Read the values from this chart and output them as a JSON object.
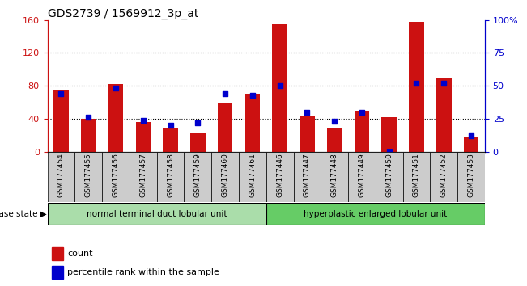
{
  "title": "GDS2739 / 1569912_3p_at",
  "samples": [
    "GSM177454",
    "GSM177455",
    "GSM177456",
    "GSM177457",
    "GSM177458",
    "GSM177459",
    "GSM177460",
    "GSM177461",
    "GSM177446",
    "GSM177447",
    "GSM177448",
    "GSM177449",
    "GSM177450",
    "GSM177451",
    "GSM177452",
    "GSM177453"
  ],
  "counts": [
    75,
    40,
    82,
    36,
    28,
    22,
    60,
    70,
    155,
    44,
    28,
    50,
    42,
    158,
    90,
    18
  ],
  "percentiles": [
    44,
    26,
    48,
    24,
    20,
    22,
    44,
    43,
    50,
    30,
    23,
    30,
    0,
    52,
    52,
    12
  ],
  "group1_label": "normal terminal duct lobular unit",
  "group2_label": "hyperplastic enlarged lobular unit",
  "group1_count": 8,
  "group2_count": 8,
  "ylim_left": [
    0,
    160
  ],
  "ylim_right": [
    0,
    100
  ],
  "yticks_left": [
    0,
    40,
    80,
    120,
    160
  ],
  "yticks_right": [
    0,
    25,
    50,
    75,
    100
  ],
  "ytick_labels_right": [
    "0",
    "25",
    "50",
    "75",
    "100%"
  ],
  "bar_color": "#cc1111",
  "dot_color": "#0000cc",
  "group1_bg": "#aaddaa",
  "group2_bg": "#66cc66",
  "tick_bg": "#cccccc",
  "disease_state_label": "disease state",
  "legend_count": "count",
  "legend_pct": "percentile rank within the sample",
  "grid_color": "black",
  "bar_width": 0.55
}
